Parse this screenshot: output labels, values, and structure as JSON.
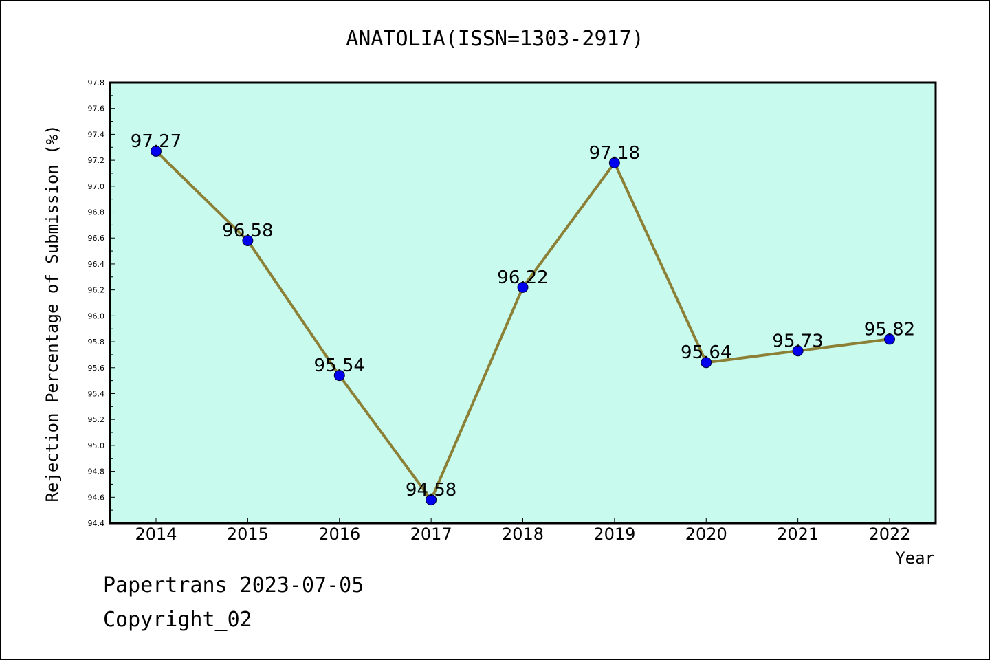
{
  "chart_data": {
    "type": "line",
    "title": "ANATOLIA(ISSN=1303-2917)",
    "xlabel": "Year",
    "ylabel": "Rejection Percentage of Submission (%)",
    "categories": [
      "2014",
      "2015",
      "2016",
      "2017",
      "2018",
      "2019",
      "2020",
      "2021",
      "2022"
    ],
    "series": [
      {
        "values": [
          97.27,
          96.58,
          95.54,
          94.58,
          96.22,
          97.18,
          95.64,
          95.73,
          95.82
        ],
        "data_labels": [
          "97.27",
          "96.58",
          "95.54",
          "94.58",
          "96.22",
          "97.18",
          "95.64",
          "95.73",
          "95.82"
        ],
        "line_color": "#8b8036",
        "marker_color": "#0000ee"
      }
    ],
    "ylim": [
      94.4,
      97.8
    ],
    "yticks": [
      "94.4",
      "94.6",
      "94.8",
      "95.0",
      "95.2",
      "95.4",
      "95.6",
      "95.8",
      "96.0",
      "96.2",
      "96.4",
      "96.6",
      "96.8",
      "97.0",
      "97.2",
      "97.4",
      "97.6",
      "97.8"
    ],
    "plot_background": "#c8fbee",
    "grid": false,
    "legend": "none"
  },
  "footer": {
    "line1": "Papertrans 2023-07-05",
    "line2": "Copyright_02"
  }
}
